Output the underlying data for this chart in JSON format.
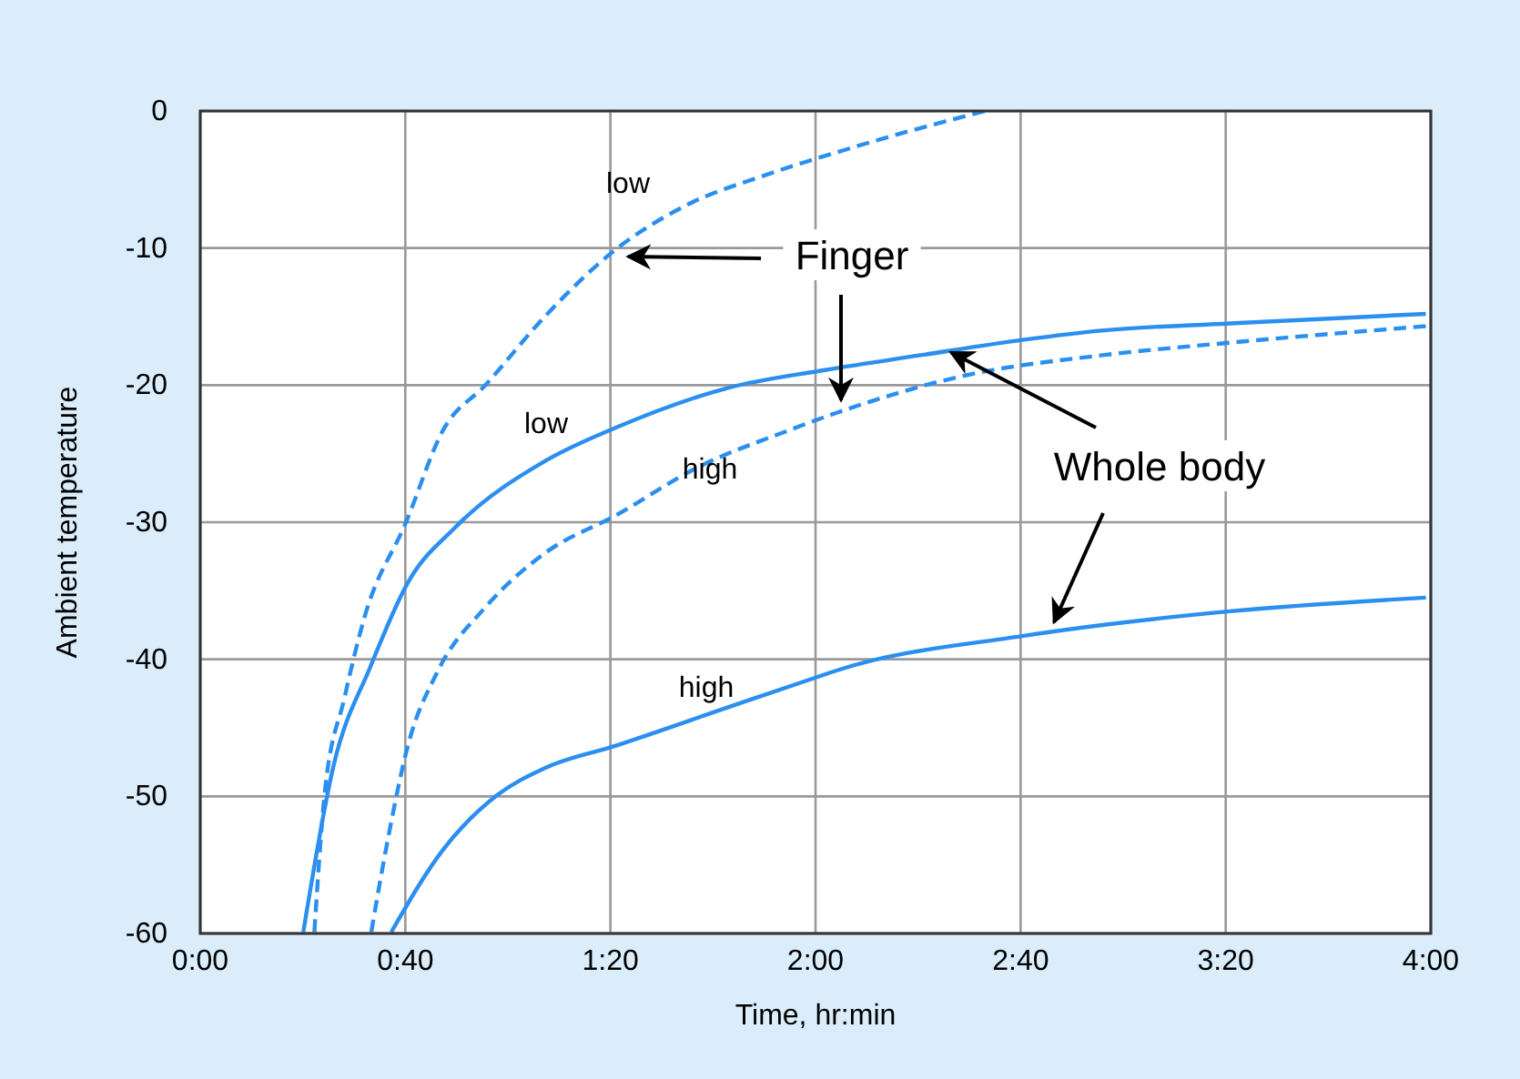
{
  "chart_data": {
    "type": "line",
    "xlabel": "Time, hr:min",
    "ylabel": "Ambient temperature",
    "xlim": [
      0,
      4
    ],
    "xticks": [
      {
        "value": 0,
        "label": "0:00"
      },
      {
        "value": 0.6667,
        "label": "0:40"
      },
      {
        "value": 1.3333,
        "label": "1:20"
      },
      {
        "value": 2,
        "label": "2:00"
      },
      {
        "value": 2.6667,
        "label": "2:40"
      },
      {
        "value": 3.3333,
        "label": "3:20"
      },
      {
        "value": 4,
        "label": "4:00"
      }
    ],
    "ylim": [
      -60,
      0
    ],
    "yticks": [
      -60,
      -50,
      -40,
      -30,
      -20,
      -10,
      0
    ],
    "grid": true,
    "marker": "none",
    "series": [
      {
        "name": "low",
        "color": "#2b8ff0",
        "line_style": "dashed",
        "x": [
          0.371,
          0.404,
          0.469,
          0.533,
          0.669,
          0.789,
          0.927,
          1.124,
          1.351,
          1.578,
          1.834,
          2.071,
          2.3,
          2.55
        ],
        "values": [
          -59.9,
          -49.9,
          -42.8,
          -37,
          -30,
          -23.3,
          -20,
          -14.9,
          -10.1,
          -6.9,
          -4.7,
          -3,
          -1.5,
          0
        ]
      },
      {
        "name": "low",
        "color": "#2b8ff0",
        "line_style": "solid",
        "x": [
          0.335,
          0.434,
          0.552,
          0.675,
          0.828,
          1.124,
          1.351,
          1.716,
          2.031,
          2.347,
          2.672,
          2.939,
          3.347,
          3.984
        ],
        "values": [
          -59.9,
          -47.7,
          -40.6,
          -34.4,
          -30.4,
          -25.5,
          -23.1,
          -20.2,
          -18.9,
          -17.8,
          -16.7,
          -16,
          -15.5,
          -14.8
        ]
      },
      {
        "name": "high",
        "color": "#2b8ff0",
        "line_style": "dashed",
        "x": [
          0.556,
          0.611,
          0.675,
          0.769,
          0.927,
          1.124,
          1.351,
          1.617,
          1.913,
          2.071,
          2.485,
          2.939,
          3.347,
          3.984
        ],
        "values": [
          -59.9,
          -53,
          -46.3,
          -41,
          -36.2,
          -32.2,
          -29.5,
          -26,
          -23.3,
          -22,
          -19.3,
          -17.8,
          -16.9,
          -15.7
        ]
      },
      {
        "name": "high",
        "color": "#2b8ff0",
        "line_style": "solid",
        "x": [
          0.621,
          0.789,
          0.966,
          1.124,
          1.351,
          1.716,
          2.031,
          2.071,
          2.672,
          3.347,
          3.984
        ],
        "values": [
          -59.9,
          -53.9,
          -49.9,
          -47.9,
          -46.3,
          -43.5,
          -41.1,
          -40.8,
          -38.3,
          -36.5,
          -35.5
        ]
      }
    ],
    "annotations": [
      "Finger",
      {
        "text": "Whole body",
        "x": 2.44,
        "y": -17.6
      }
    ]
  }
}
